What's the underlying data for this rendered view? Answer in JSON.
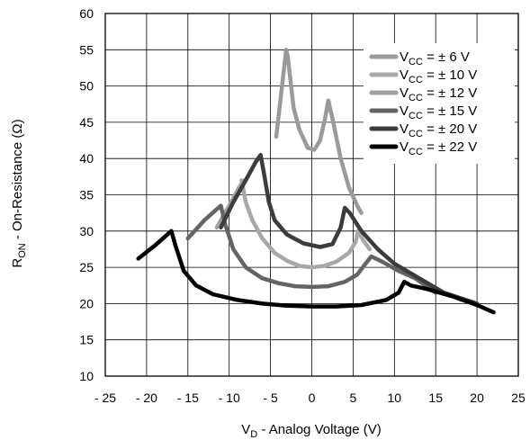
{
  "chart_data": {
    "type": "line",
    "xlabel": {
      "main": "V",
      "sub": "D",
      "rest": " -  Analog Voltage (V)"
    },
    "ylabel": {
      "main": "R",
      "sub": "ON",
      "rest": " -  On-Resistance (Ω)"
    },
    "xlim": [
      -25,
      25
    ],
    "ylim": [
      10,
      60
    ],
    "xticks": [
      -25,
      -20,
      -15,
      -10,
      -5,
      0,
      5,
      10,
      15,
      20,
      25
    ],
    "xtick_labels": [
      "- 25",
      "- 20",
      "- 15",
      "- 10",
      "- 5",
      "0",
      "5",
      "10",
      "15",
      "20",
      "25"
    ],
    "yticks": [
      10,
      15,
      20,
      25,
      30,
      35,
      40,
      45,
      50,
      55,
      60
    ],
    "ytick_labels": [
      "10",
      "15",
      "20",
      "25",
      "30",
      "35",
      "40",
      "45",
      "50",
      "55",
      "60"
    ],
    "grid": true,
    "legend_position": "top-right",
    "series": [
      {
        "name": "VCC = ± 6 V",
        "legend_main": "V",
        "legend_sub": "CC",
        "legend_rest": " = ± 6 V",
        "color": "#9a9a9a",
        "x": [
          -4.3,
          -3.7,
          -3.3,
          -3.1,
          -2.9,
          -2.6,
          -2.2,
          -1.5,
          -0.5,
          0.3,
          1.0,
          1.6,
          2.0,
          2.5,
          3.5,
          4.5,
          5.5,
          6
        ],
        "y": [
          43,
          49,
          53,
          55,
          54,
          51,
          47,
          44,
          41.5,
          41.2,
          42.5,
          45.5,
          48,
          45.5,
          40,
          36,
          33.5,
          32.5
        ]
      },
      {
        "name": "VCC = ± 10 V",
        "legend_main": "V",
        "legend_sub": "CC",
        "legend_rest": " = ± 10 V",
        "color": "#a8a8a8",
        "x": [
          -8.5,
          -8.0,
          -7.2,
          -6.0,
          -4.5,
          -3.0,
          -1.5,
          0,
          1.5,
          3.0,
          4.5,
          5.3,
          5.6,
          6.2,
          7.0
        ],
        "y": [
          37,
          34,
          31.5,
          29,
          27,
          25.9,
          25.2,
          25,
          25.2,
          25.8,
          27,
          28.5,
          30,
          28.8,
          27.5
        ]
      },
      {
        "name": "VCC = ± 12 V",
        "legend_main": "V",
        "legend_sub": "CC",
        "legend_rest": " = ± 12 V",
        "color": "#a0a0a0",
        "x": [
          -11.5,
          -10.0,
          -8.8,
          -8.2
        ],
        "y": [
          30.5,
          33.5,
          36,
          37
        ]
      },
      {
        "name": "VCC = ± 15 V",
        "legend_main": "V",
        "legend_sub": "CC",
        "legend_rest": " = ± 15 V",
        "color": "#646464",
        "x": [
          -15,
          -13,
          -11.5,
          -11.0,
          -10.5,
          -9.5,
          -8,
          -6,
          -4,
          -2,
          0,
          2,
          4,
          5.5,
          6.5,
          7.2,
          8.5,
          10.5,
          12.5,
          15
        ],
        "y": [
          29,
          31.5,
          33,
          33.5,
          31,
          27.5,
          25,
          23.5,
          22.8,
          22.4,
          22.3,
          22.4,
          23,
          24,
          25.5,
          26.5,
          25.8,
          24.5,
          23.5,
          21.5
        ]
      },
      {
        "name": "VCC = ± 20 V",
        "legend_main": "V",
        "legend_sub": "CC",
        "legend_rest": " = ± 20 V",
        "color": "#3c3c3c",
        "x": [
          -11,
          -9.5,
          -8,
          -6.8,
          -6.2,
          -5.8,
          -5.2,
          -4.5,
          -3,
          -1,
          1,
          2.5,
          3.5,
          4.0,
          4.6,
          6,
          8,
          10,
          13,
          16,
          20
        ],
        "y": [
          30.5,
          34,
          37,
          39.5,
          40.5,
          38,
          34,
          31.5,
          29.5,
          28.3,
          27.8,
          28.2,
          30.5,
          33.2,
          32.5,
          30,
          27.5,
          25.5,
          23.5,
          21.5,
          20
        ]
      },
      {
        "name": "VCC = ± 22 V",
        "legend_main": "V",
        "legend_sub": "CC",
        "legend_rest": " = ± 22 V",
        "color": "#000000",
        "x": [
          -21,
          -19,
          -17.5,
          -17,
          -16.5,
          -15.5,
          -14,
          -12,
          -9,
          -6,
          -3,
          0,
          3,
          6,
          9,
          10.5,
          11.2,
          12,
          14,
          17,
          20,
          22
        ],
        "y": [
          26.2,
          28,
          29.5,
          30,
          28,
          24.5,
          22.5,
          21.3,
          20.5,
          20,
          19.7,
          19.6,
          19.6,
          19.8,
          20.5,
          21.5,
          23,
          22.5,
          22,
          21,
          19.8,
          18.8
        ]
      }
    ]
  }
}
